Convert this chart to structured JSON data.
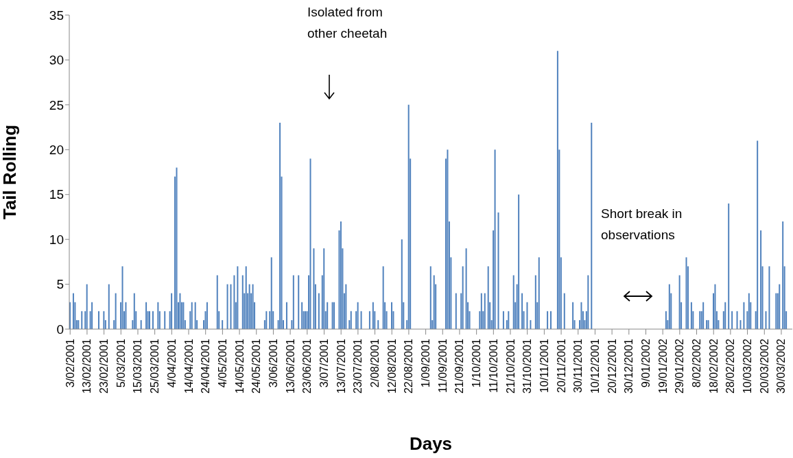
{
  "chart_data": {
    "type": "bar",
    "xlabel": "Days",
    "ylabel": "Tail Rolling",
    "color": "#4f81bd",
    "annotations": [
      "Isolated from other cheetah",
      "Short break in observations"
    ],
    "x": [
      "2001-02-03",
      "2001-02-05",
      "2001-02-06",
      "2001-02-07",
      "2001-02-08",
      "2001-02-10",
      "2001-02-12",
      "2001-02-13",
      "2001-02-15",
      "2001-02-16",
      "2001-02-20",
      "2001-02-23",
      "2001-02-24",
      "2001-02-26",
      "2001-03-01",
      "2001-03-02",
      "2001-03-05",
      "2001-03-06",
      "2001-03-07",
      "2001-03-08",
      "2001-03-12",
      "2001-03-13",
      "2001-03-14",
      "2001-03-17",
      "2001-03-20",
      "2001-03-21",
      "2001-03-22",
      "2001-03-24",
      "2001-03-27",
      "2001-03-28",
      "2001-03-31",
      "2001-04-03",
      "2001-04-04",
      "2001-04-06",
      "2001-04-07",
      "2001-04-08",
      "2001-04-09",
      "2001-04-10",
      "2001-04-11",
      "2001-04-12",
      "2001-04-15",
      "2001-04-16",
      "2001-04-18",
      "2001-04-19",
      "2001-04-23",
      "2001-04-24",
      "2001-04-25",
      "2001-05-01",
      "2001-05-02",
      "2001-05-04",
      "2001-05-07",
      "2001-05-09",
      "2001-05-11",
      "2001-05-12",
      "2001-05-13",
      "2001-05-16",
      "2001-05-17",
      "2001-05-18",
      "2001-05-19",
      "2001-05-20",
      "2001-05-21",
      "2001-05-22",
      "2001-05-23",
      "2001-05-29",
      "2001-05-30",
      "2001-06-01",
      "2001-06-02",
      "2001-06-03",
      "2001-06-06",
      "2001-06-07",
      "2001-06-08",
      "2001-06-09",
      "2001-06-11",
      "2001-06-14",
      "2001-06-15",
      "2001-06-18",
      "2001-06-20",
      "2001-06-21",
      "2001-06-22",
      "2001-06-23",
      "2001-06-24",
      "2001-06-25",
      "2001-06-27",
      "2001-06-28",
      "2001-06-30",
      "2001-07-02",
      "2001-07-03",
      "2001-07-04",
      "2001-07-05",
      "2001-07-08",
      "2001-07-09",
      "2001-07-12",
      "2001-07-13",
      "2001-07-14",
      "2001-07-15",
      "2001-07-16",
      "2001-07-18",
      "2001-07-19",
      "2001-07-22",
      "2001-07-23",
      "2001-07-25",
      "2001-07-30",
      "2001-08-01",
      "2001-08-02",
      "2001-08-04",
      "2001-08-07",
      "2001-08-08",
      "2001-08-09",
      "2001-08-12",
      "2001-08-13",
      "2001-08-18",
      "2001-08-19",
      "2001-08-21",
      "2001-08-22",
      "2001-08-23",
      "2001-09-04",
      "2001-09-05",
      "2001-09-06",
      "2001-09-07",
      "2001-09-13",
      "2001-09-14",
      "2001-09-15",
      "2001-09-16",
      "2001-09-19",
      "2001-09-22",
      "2001-09-23",
      "2001-09-25",
      "2001-09-26",
      "2001-09-27",
      "2001-10-03",
      "2001-10-04",
      "2001-10-05",
      "2001-10-06",
      "2001-10-08",
      "2001-10-09",
      "2001-10-10",
      "2001-10-11",
      "2001-10-12",
      "2001-10-14",
      "2001-10-17",
      "2001-10-19",
      "2001-10-20",
      "2001-10-23",
      "2001-10-24",
      "2001-10-25",
      "2001-10-26",
      "2001-10-28",
      "2001-10-29",
      "2001-10-31",
      "2001-11-02",
      "2001-11-05",
      "2001-11-06",
      "2001-11-07",
      "2001-11-12",
      "2001-11-14",
      "2001-11-18",
      "2001-11-19",
      "2001-11-20",
      "2001-11-22",
      "2001-11-27",
      "2001-11-28",
      "2001-12-01",
      "2001-12-02",
      "2001-12-03",
      "2001-12-04",
      "2001-12-05",
      "2001-12-06",
      "2001-12-08",
      "2002-01-21",
      "2002-01-22",
      "2002-01-23",
      "2002-01-24",
      "2002-01-29",
      "2002-01-30",
      "2002-02-02",
      "2002-02-03",
      "2002-02-05",
      "2002-02-06",
      "2002-02-10",
      "2002-02-11",
      "2002-02-12",
      "2002-02-14",
      "2002-02-15",
      "2002-02-18",
      "2002-02-19",
      "2002-02-20",
      "2002-02-21",
      "2002-02-24",
      "2002-02-25",
      "2002-02-27",
      "2002-03-01",
      "2002-03-04",
      "2002-03-06",
      "2002-03-08",
      "2002-03-10",
      "2002-03-11",
      "2002-03-12",
      "2002-03-15",
      "2002-03-16",
      "2002-03-18",
      "2002-03-19",
      "2002-03-21",
      "2002-03-23",
      "2002-03-27",
      "2002-03-28",
      "2002-03-29",
      "2002-03-31",
      "2002-04-01",
      "2002-04-02"
    ],
    "values": [
      3,
      4,
      3,
      1,
      1,
      2,
      2,
      5,
      2,
      3,
      2,
      2,
      1,
      5,
      1,
      4,
      3,
      7,
      2,
      3,
      1,
      4,
      2,
      1,
      3,
      2,
      2,
      2,
      3,
      2,
      2,
      2,
      4,
      17,
      18,
      3,
      4,
      3,
      3,
      1,
      2,
      3,
      3,
      1,
      1,
      2,
      3,
      6,
      2,
      1,
      5,
      5,
      6,
      3,
      7,
      6,
      4,
      7,
      4,
      5,
      4,
      5,
      3,
      1,
      2,
      2,
      8,
      2,
      1,
      23,
      17,
      1,
      3,
      1,
      6,
      6,
      3,
      2,
      2,
      2,
      6,
      19,
      9,
      5,
      4,
      6,
      9,
      2,
      3,
      3,
      3,
      11,
      12,
      9,
      4,
      5,
      1,
      2,
      2,
      3,
      2,
      2,
      3,
      2,
      1,
      7,
      3,
      2,
      3,
      2,
      10,
      3,
      1,
      25,
      19,
      7,
      1,
      6,
      5,
      19,
      20,
      12,
      8,
      4,
      4,
      7,
      9,
      3,
      2,
      2,
      4,
      2,
      4,
      7,
      3,
      1,
      11,
      20,
      13,
      2,
      1,
      2,
      6,
      3,
      5,
      15,
      4,
      2,
      3,
      1,
      6,
      3,
      8,
      2,
      2,
      31,
      20,
      8,
      4,
      3,
      1,
      1,
      3,
      2,
      1,
      2,
      6,
      23,
      2,
      1,
      5,
      4,
      6,
      3,
      8,
      7,
      3,
      2,
      2,
      2,
      3,
      1,
      1,
      4,
      5,
      2,
      1,
      2,
      3,
      14,
      2,
      2,
      1,
      3,
      2,
      4,
      3,
      2,
      21,
      11,
      7,
      2,
      7,
      4,
      4,
      5,
      12,
      7,
      2
    ],
    "xlim": [
      "2001-02-02T12:00",
      "2002-04-05T12:00"
    ],
    "xticks": [
      {
        "value": "2001-02-03",
        "label": "3/02/2001"
      },
      {
        "value": "2001-02-13",
        "label": "13/02/2001"
      },
      {
        "value": "2001-02-23",
        "label": "23/02/2001"
      },
      {
        "value": "2001-03-05",
        "label": "5/03/2001"
      },
      {
        "value": "2001-03-15",
        "label": "15/03/2001"
      },
      {
        "value": "2001-03-25",
        "label": "25/03/2001"
      },
      {
        "value": "2001-04-04",
        "label": "4/04/2001"
      },
      {
        "value": "2001-04-14",
        "label": "14/04/2001"
      },
      {
        "value": "2001-04-24",
        "label": "24/04/2001"
      },
      {
        "value": "2001-05-04",
        "label": "4/05/2001"
      },
      {
        "value": "2001-05-14",
        "label": "14/05/2001"
      },
      {
        "value": "2001-05-24",
        "label": "24/05/2001"
      },
      {
        "value": "2001-06-03",
        "label": "3/06/2001"
      },
      {
        "value": "2001-06-13",
        "label": "13/06/2001"
      },
      {
        "value": "2001-06-23",
        "label": "23/06/2001"
      },
      {
        "value": "2001-07-03",
        "label": "3/07/2001"
      },
      {
        "value": "2001-07-13",
        "label": "13/07/2001"
      },
      {
        "value": "2001-07-23",
        "label": "23/07/2001"
      },
      {
        "value": "2001-08-02",
        "label": "2/08/2001"
      },
      {
        "value": "2001-08-12",
        "label": "12/08/2001"
      },
      {
        "value": "2001-08-22",
        "label": "22/08/2001"
      },
      {
        "value": "2001-09-01",
        "label": "1/09/2001"
      },
      {
        "value": "2001-09-11",
        "label": "11/09/2001"
      },
      {
        "value": "2001-09-21",
        "label": "21/09/2001"
      },
      {
        "value": "2001-10-01",
        "label": "1/10/2001"
      },
      {
        "value": "2001-10-11",
        "label": "11/10/2001"
      },
      {
        "value": "2001-10-21",
        "label": "21/10/2001"
      },
      {
        "value": "2001-10-31",
        "label": "31/10/2001"
      },
      {
        "value": "2001-11-10",
        "label": "10/11/2001"
      },
      {
        "value": "2001-11-20",
        "label": "20/11/2001"
      },
      {
        "value": "2001-11-30",
        "label": "30/11/2001"
      },
      {
        "value": "2001-12-10",
        "label": "10/12/2001"
      },
      {
        "value": "2001-12-20",
        "label": "20/12/2001"
      },
      {
        "value": "2001-12-30",
        "label": "30/12/2001"
      },
      {
        "value": "2002-01-09",
        "label": "9/01/2002"
      },
      {
        "value": "2002-01-19",
        "label": "19/01/2002"
      },
      {
        "value": "2002-01-29",
        "label": "29/01/2002"
      },
      {
        "value": "2002-02-08",
        "label": "8/02/2002"
      },
      {
        "value": "2002-02-18",
        "label": "18/02/2002"
      },
      {
        "value": "2002-02-28",
        "label": "28/02/2002"
      },
      {
        "value": "2002-03-10",
        "label": "10/03/2002"
      },
      {
        "value": "2002-03-20",
        "label": "20/03/2002"
      },
      {
        "value": "2002-03-30",
        "label": "30/03/2002"
      }
    ],
    "ylim": [
      0,
      35
    ],
    "yticks": [
      0,
      5,
      10,
      15,
      20,
      25,
      30,
      35
    ],
    "grid": false,
    "legend": false
  }
}
